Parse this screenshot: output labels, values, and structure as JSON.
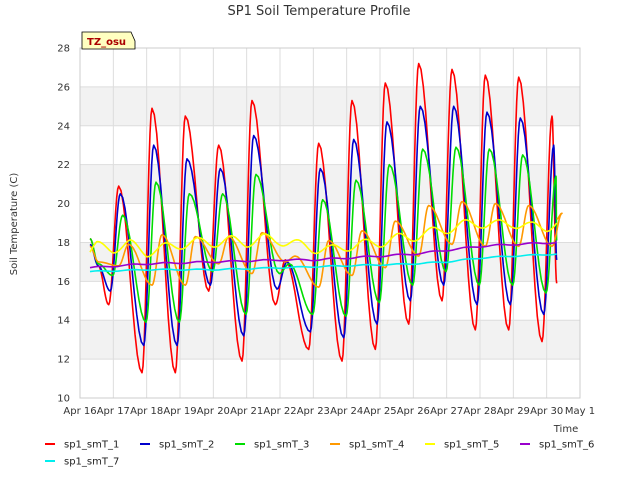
{
  "chart_data": {
    "type": "line",
    "title": "SP1 Soil Temperature Profile",
    "xlabel": "Time",
    "ylabel": "Soil Temperature (C)",
    "site_tag": "TZ_osu",
    "xlim": [
      16,
      31
    ],
    "ylim": [
      10,
      28
    ],
    "yticks": [
      10,
      12,
      14,
      16,
      18,
      20,
      22,
      24,
      26,
      28
    ],
    "xticks": [
      {
        "day": 16,
        "label": "Apr 16"
      },
      {
        "day": 17,
        "label": "Apr 17"
      },
      {
        "day": 18,
        "label": "Apr 18"
      },
      {
        "day": 19,
        "label": "Apr 19"
      },
      {
        "day": 20,
        "label": "Apr 20"
      },
      {
        "day": 21,
        "label": "Apr 21"
      },
      {
        "day": 22,
        "label": "Apr 22"
      },
      {
        "day": 23,
        "label": "Apr 23"
      },
      {
        "day": 24,
        "label": "Apr 24"
      },
      {
        "day": 25,
        "label": "Apr 25"
      },
      {
        "day": 26,
        "label": "Apr 26"
      },
      {
        "day": 27,
        "label": "Apr 27"
      },
      {
        "day": 28,
        "label": "Apr 28"
      },
      {
        "day": 29,
        "label": "Apr 29"
      },
      {
        "day": 30,
        "label": "Apr 30"
      },
      {
        "day": 31,
        "label": "May 1"
      }
    ],
    "series": [
      {
        "name": "sp1_smT_1",
        "color": "#ff0000",
        "lag": 0.0,
        "start": 18.2,
        "mid": 16.8,
        "mins": [
          14.8,
          11.3,
          11.3,
          15.5,
          11.9,
          14.8,
          12.5,
          11.9,
          12.5,
          13.8,
          15.0,
          13.5,
          13.5,
          12.9
        ],
        "maxs": [
          20.9,
          24.9,
          24.5,
          23.0,
          25.3,
          17.1,
          23.1,
          25.3,
          26.2,
          27.2,
          26.9,
          26.6,
          26.5,
          24.5
        ],
        "end": 15.9
      },
      {
        "name": "sp1_smT_2",
        "color": "#0000cc",
        "lag": 0.05,
        "start": 17.9,
        "mid": 16.8,
        "mins": [
          15.5,
          12.7,
          12.7,
          15.8,
          13.2,
          15.6,
          13.4,
          13.1,
          13.8,
          15.0,
          15.8,
          14.8,
          14.8,
          14.3
        ],
        "maxs": [
          20.5,
          23.0,
          22.3,
          21.8,
          23.5,
          17.0,
          21.8,
          23.3,
          24.2,
          25.0,
          25.0,
          24.7,
          24.4,
          23.0
        ],
        "end": 17.1
      },
      {
        "name": "sp1_smT_3",
        "color": "#00dd00",
        "lag": 0.12,
        "start": 18.2,
        "mid": 16.9,
        "mins": [
          16.3,
          13.9,
          13.9,
          16.5,
          14.3,
          16.4,
          14.3,
          14.2,
          14.9,
          15.8,
          16.5,
          15.8,
          15.8,
          15.4
        ],
        "maxs": [
          19.4,
          21.1,
          20.5,
          20.5,
          21.5,
          16.9,
          20.2,
          21.2,
          22.0,
          22.8,
          22.9,
          22.8,
          22.5,
          21.4
        ],
        "end": 18.1
      },
      {
        "name": "sp1_smT_4",
        "color": "#ff9900",
        "lag": 0.3,
        "start": 17.8,
        "mid": 17.0,
        "mins": [
          16.8,
          15.8,
          15.8,
          16.9,
          16.4,
          17.0,
          15.7,
          16.3,
          16.7,
          17.3,
          17.9,
          17.8,
          17.8,
          17.8
        ],
        "maxs": [
          17.9,
          18.4,
          18.3,
          18.3,
          18.5,
          17.3,
          18.1,
          18.6,
          19.1,
          19.9,
          20.1,
          20.0,
          19.9,
          19.5
        ],
        "end": 19.2
      },
      {
        "name": "sp1_smT_5",
        "color": "#ffff00",
        "points": [
          [
            16.3,
            17.5
          ],
          [
            16.5,
            17.8
          ],
          [
            17.0,
            17.7
          ],
          [
            17.5,
            17.9
          ],
          [
            18.0,
            17.5
          ],
          [
            18.5,
            17.7
          ],
          [
            19.0,
            17.9
          ],
          [
            19.5,
            18.0
          ],
          [
            20.0,
            18.0
          ],
          [
            20.5,
            18.1
          ],
          [
            21.0,
            18.0
          ],
          [
            21.5,
            18.2
          ],
          [
            22.0,
            18.1
          ],
          [
            22.5,
            17.9
          ],
          [
            23.0,
            17.7
          ],
          [
            23.5,
            17.6
          ],
          [
            24.0,
            17.8
          ],
          [
            24.5,
            17.9
          ],
          [
            25.0,
            18.0
          ],
          [
            25.5,
            18.2
          ],
          [
            26.0,
            18.3
          ],
          [
            26.5,
            18.5
          ],
          [
            27.0,
            18.7
          ],
          [
            27.5,
            18.9
          ],
          [
            28.0,
            19.0
          ],
          [
            28.5,
            18.9
          ],
          [
            29.0,
            19.0
          ],
          [
            29.5,
            18.8
          ],
          [
            30.0,
            18.8
          ],
          [
            30.3,
            19.0
          ]
        ],
        "amp": 0.25
      },
      {
        "name": "sp1_smT_6",
        "color": "#9900cc",
        "points": [
          [
            16.3,
            16.7
          ],
          [
            18.0,
            16.9
          ],
          [
            20.0,
            17.0
          ],
          [
            22.0,
            17.1
          ],
          [
            23.0,
            17.1
          ],
          [
            24.0,
            17.2
          ],
          [
            25.0,
            17.3
          ],
          [
            26.0,
            17.4
          ],
          [
            27.0,
            17.6
          ],
          [
            28.0,
            17.8
          ],
          [
            29.0,
            17.9
          ],
          [
            30.3,
            18.0
          ]
        ],
        "amp": 0.04
      },
      {
        "name": "sp1_smT_7",
        "color": "#00eeee",
        "points": [
          [
            16.3,
            16.5
          ],
          [
            18.0,
            16.6
          ],
          [
            20.0,
            16.6
          ],
          [
            22.0,
            16.7
          ],
          [
            24.0,
            16.8
          ],
          [
            26.0,
            16.9
          ],
          [
            27.0,
            17.0
          ],
          [
            28.0,
            17.2
          ],
          [
            29.0,
            17.3
          ],
          [
            30.3,
            17.4
          ]
        ],
        "amp": 0.03
      }
    ]
  }
}
